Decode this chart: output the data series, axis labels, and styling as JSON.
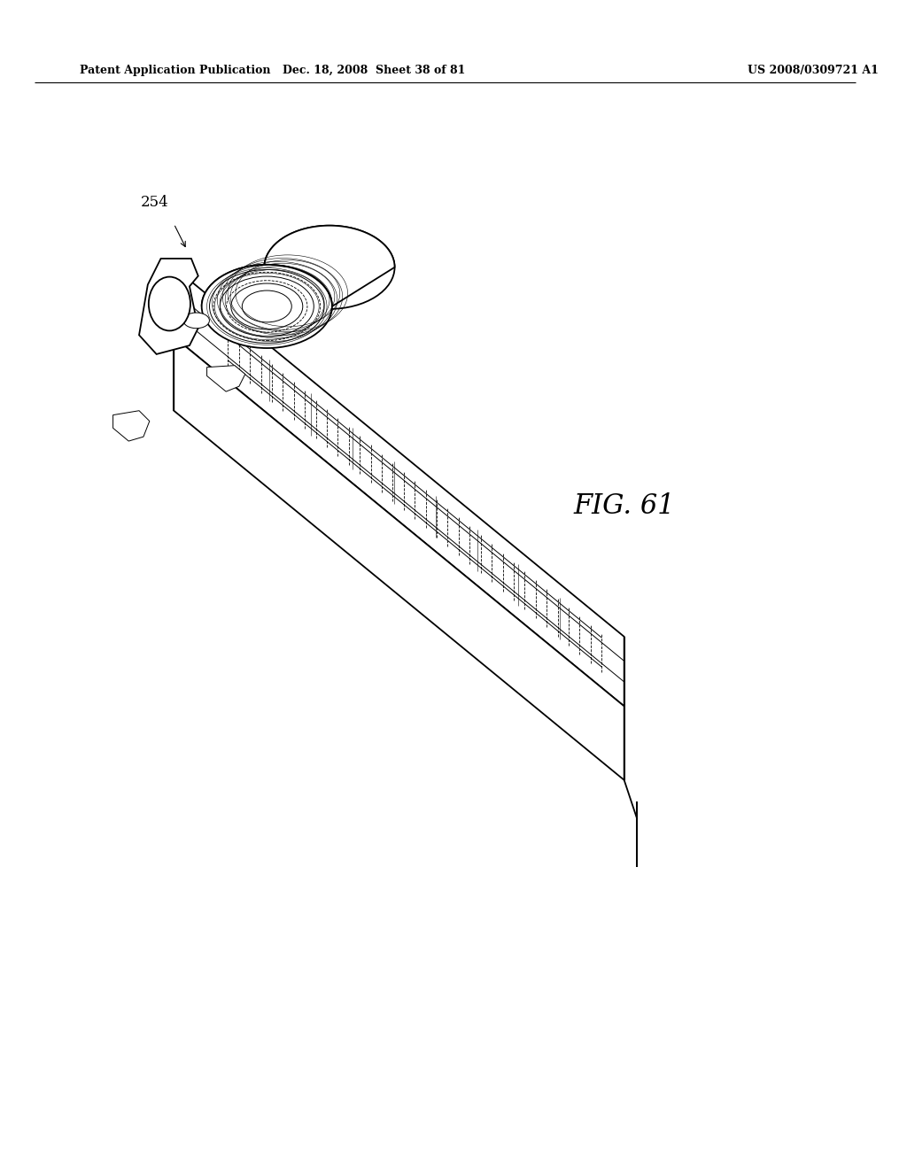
{
  "background_color": "#ffffff",
  "header_left": "Patent Application Publication",
  "header_center": "Dec. 18, 2008  Sheet 38 of 81",
  "header_right": "US 2008/0309721 A1",
  "fig_label": "FIG. 61",
  "part_label": "254",
  "lw_main": 1.3,
  "lw_thin": 0.7,
  "lw_dashed": 0.6
}
